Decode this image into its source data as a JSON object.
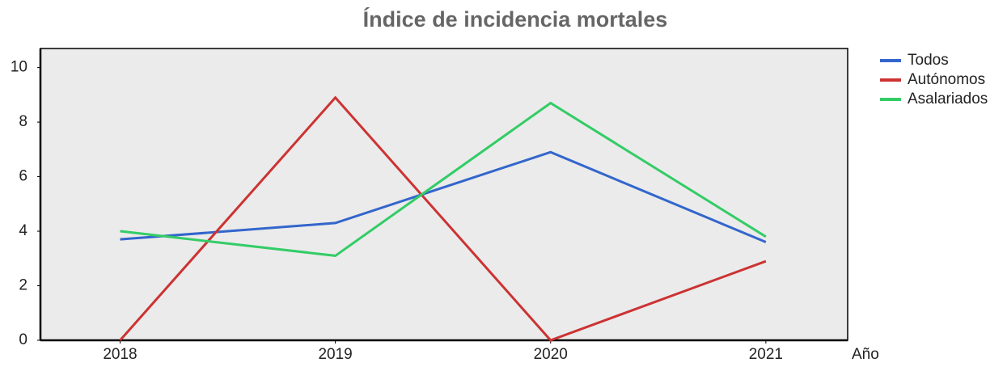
{
  "chart_data": {
    "type": "line",
    "title": "Índice de incidencia mortales",
    "x_label": "Año",
    "x": [
      2018,
      2019,
      2020,
      2021
    ],
    "xlim": [
      2017.63,
      2021.38
    ],
    "xticks": [
      2018,
      2019,
      2020,
      2021
    ],
    "ylim": [
      0,
      10.7
    ],
    "yticks": [
      0,
      2,
      4,
      6,
      8,
      10
    ],
    "background": "#ebebeb",
    "legend": "right",
    "series": [
      {
        "name": "Todos",
        "color": "#3366cc",
        "values": [
          3.7,
          4.3,
          6.9,
          3.6
        ]
      },
      {
        "name": "Autónomos",
        "color": "#cc3333",
        "values": [
          0,
          8.9,
          0,
          2.9
        ]
      },
      {
        "name": "Asalariados",
        "color": "#33cc66",
        "values": [
          4.0,
          3.1,
          8.7,
          3.8
        ]
      }
    ]
  }
}
